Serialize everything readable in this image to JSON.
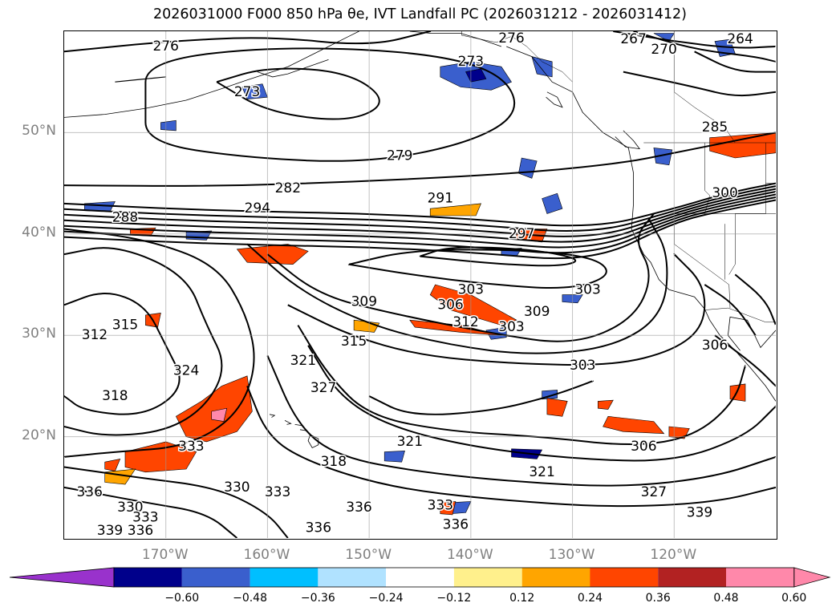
{
  "title": "2026031000 F000 850 hPa θe, IVT Landfall PC (2026031212 - 2026031412)",
  "map": {
    "lat_labels": [
      "50°N",
      "40°N",
      "30°N",
      "20°N"
    ],
    "lat_values": [
      50,
      40,
      30,
      20
    ],
    "lon_labels": [
      "170°W",
      "160°W",
      "150°W",
      "140°W",
      "130°W",
      "120°W"
    ],
    "lon_values": [
      -170,
      -160,
      -150,
      -140,
      -130,
      -120
    ],
    "extent": {
      "lon_min": -180,
      "lon_max": -110,
      "lat_min": 10,
      "lat_max": 60
    },
    "contour_labels": [
      {
        "text": "276",
        "lon": -170,
        "lat": 58.5
      },
      {
        "text": "273",
        "lon": -162,
        "lat": 54
      },
      {
        "text": "279",
        "lon": -147,
        "lat": 47.7
      },
      {
        "text": "282",
        "lon": -158,
        "lat": 44.5
      },
      {
        "text": "288",
        "lon": -174,
        "lat": 41.6
      },
      {
        "text": "294",
        "lon": -161,
        "lat": 42.5
      },
      {
        "text": "291",
        "lon": -143,
        "lat": 43.5
      },
      {
        "text": "297",
        "lon": -135,
        "lat": 40
      },
      {
        "text": "300",
        "lon": -115,
        "lat": 44
      },
      {
        "text": "285",
        "lon": -116,
        "lat": 50.5
      },
      {
        "text": "270",
        "lon": -121,
        "lat": 58.2
      },
      {
        "text": "267",
        "lon": -124,
        "lat": 59.2
      },
      {
        "text": "264",
        "lon": -113.5,
        "lat": 59.2
      },
      {
        "text": "276",
        "lon": -136,
        "lat": 59.3
      },
      {
        "text": "273",
        "lon": -140,
        "lat": 57
      },
      {
        "text": "303",
        "lon": -140,
        "lat": 34.5
      },
      {
        "text": "306",
        "lon": -142,
        "lat": 33
      },
      {
        "text": "309",
        "lon": -150.5,
        "lat": 33.3
      },
      {
        "text": "312",
        "lon": -140.5,
        "lat": 31.3
      },
      {
        "text": "303",
        "lon": -136,
        "lat": 30.8
      },
      {
        "text": "309",
        "lon": -133.5,
        "lat": 32.3
      },
      {
        "text": "303",
        "lon": -128.5,
        "lat": 34.5
      },
      {
        "text": "315",
        "lon": -151.5,
        "lat": 29.4
      },
      {
        "text": "315",
        "lon": -174,
        "lat": 31
      },
      {
        "text": "312",
        "lon": -177,
        "lat": 30
      },
      {
        "text": "321",
        "lon": -156.5,
        "lat": 27.5
      },
      {
        "text": "324",
        "lon": -168,
        "lat": 26.5
      },
      {
        "text": "327",
        "lon": -154.5,
        "lat": 24.8
      },
      {
        "text": "318",
        "lon": -175,
        "lat": 24
      },
      {
        "text": "333",
        "lon": -167.5,
        "lat": 19
      },
      {
        "text": "321",
        "lon": -146,
        "lat": 19.5
      },
      {
        "text": "318",
        "lon": -153.5,
        "lat": 17.5
      },
      {
        "text": "321",
        "lon": -133,
        "lat": 16.5
      },
      {
        "text": "306",
        "lon": -123,
        "lat": 19
      },
      {
        "text": "303",
        "lon": -129,
        "lat": 27
      },
      {
        "text": "306",
        "lon": -116,
        "lat": 29
      },
      {
        "text": "327",
        "lon": -122,
        "lat": 14.5
      },
      {
        "text": "339",
        "lon": -117.5,
        "lat": 12.5
      },
      {
        "text": "336",
        "lon": -177.5,
        "lat": 14.5
      },
      {
        "text": "333",
        "lon": -159,
        "lat": 14.5
      },
      {
        "text": "336",
        "lon": -151,
        "lat": 13
      },
      {
        "text": "333",
        "lon": -143,
        "lat": 13.2
      },
      {
        "text": "336",
        "lon": -141.5,
        "lat": 11.3
      },
      {
        "text": "336",
        "lon": -155,
        "lat": 11
      },
      {
        "text": "330",
        "lon": -173.5,
        "lat": 13
      },
      {
        "text": "333",
        "lon": -172,
        "lat": 12
      },
      {
        "text": "336",
        "lon": -172.5,
        "lat": 10.7
      },
      {
        "text": "339",
        "lon": -175.5,
        "lat": 10.7
      },
      {
        "text": "330",
        "lon": -163,
        "lat": 15
      }
    ]
  },
  "colorbar": {
    "tick_labels": [
      "−0.60",
      "−0.48",
      "−0.36",
      "−0.24",
      "−0.12",
      "0.12",
      "0.24",
      "0.36",
      "0.48",
      "0.60"
    ],
    "colors": [
      "#9932cc",
      "#00008b",
      "#3a5fcd",
      "#00bfff",
      "#b0e2ff",
      "#ffffff",
      "#fff08c",
      "#ffa500",
      "#ff4500",
      "#b22222",
      "#ff88aa",
      "#ff88aa"
    ]
  }
}
